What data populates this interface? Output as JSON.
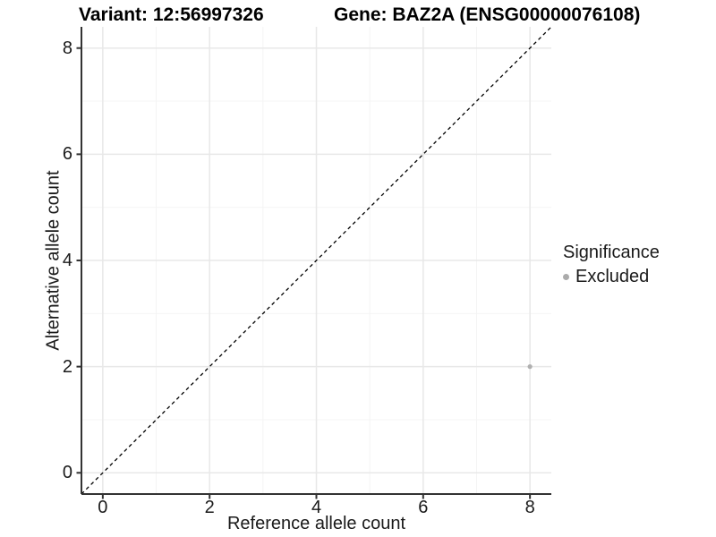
{
  "titles": {
    "variant": "Variant: 12:56997326",
    "gene": "Gene: BAZ2A (ENSG00000076108)"
  },
  "chart_data": {
    "type": "scatter",
    "title": "Variant: 12:56997326  /  Gene: BAZ2A (ENSG00000076108)",
    "xlabel": "Reference allele count",
    "ylabel": "Alternative allele count",
    "xlim": [
      -0.4,
      8.4
    ],
    "ylim": [
      -0.4,
      8.4
    ],
    "xticks": [
      0,
      2,
      4,
      6,
      8
    ],
    "yticks": [
      0,
      2,
      4,
      6,
      8
    ],
    "minor_xticks": [
      1,
      3,
      5,
      7
    ],
    "minor_yticks": [
      1,
      3,
      5,
      7
    ],
    "grid": true,
    "legend_position": "right",
    "legend_title": "Significance",
    "series": [
      {
        "name": "Excluded",
        "color": "#b0b0b0",
        "points": [
          {
            "x": 8,
            "y": 2
          }
        ]
      }
    ],
    "reference_line": {
      "kind": "abline",
      "slope": 1,
      "intercept": 0,
      "style": "dashed",
      "color": "#000000"
    }
  },
  "style_colors": {
    "grid_major": "#e8e8e8",
    "grid_minor": "#f4f4f4",
    "axis_line": "#333333",
    "tick_text": "#1a1a1a",
    "legend_dot": "#ababab"
  }
}
